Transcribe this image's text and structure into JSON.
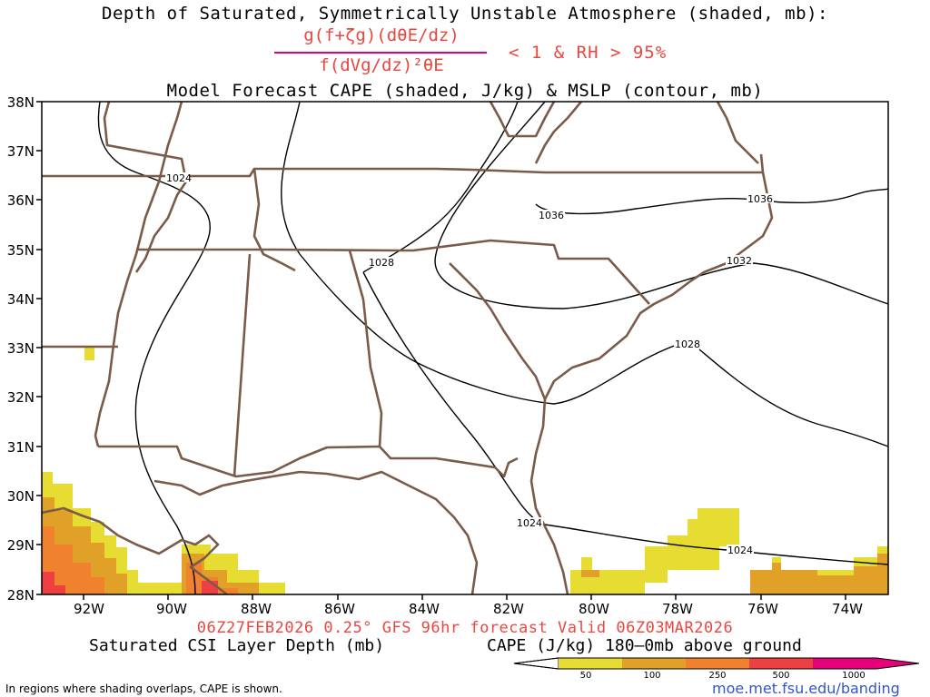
{
  "title": {
    "line1": "Depth of Saturated, Symmetrically Unstable Atmosphere (shaded, mb):",
    "formula_numerator": "g(f+ζg)(dθE/dz)",
    "formula_denominator": "f(dVg/dz)²θE",
    "condition": "< 1 & RH > 95%",
    "line3": "Model Forecast CAPE (shaded, J/kg) & MSLP (contour, mb)"
  },
  "axes": {
    "lat_labels": [
      "38N",
      "37N",
      "36N",
      "35N",
      "34N",
      "33N",
      "32N",
      "31N",
      "30N",
      "29N",
      "28N"
    ],
    "lon_labels": [
      "92W",
      "90W",
      "88W",
      "86W",
      "84W",
      "82W",
      "80W",
      "78W",
      "76W",
      "74W"
    ]
  },
  "contours": {
    "labels": [
      "1024",
      "1028",
      "1032",
      "1036"
    ]
  },
  "footer": {
    "valid": "06Z27FEB2026 0.25° GFS 96hr forecast Valid 06Z03MAR2026",
    "left_label": "Saturated CSI Layer Depth (mb)",
    "right_label": "CAPE (J/kg) 180–0mb above ground",
    "note": "In regions where shading overlaps, CAPE is shown.",
    "credit": "moe.met.fsu.edu/banding"
  },
  "colorbar": {
    "ticks": [
      "50",
      "100",
      "250",
      "500",
      "1000"
    ],
    "colors": [
      "#ffffff",
      "#e6dc32",
      "#e1a028",
      "#f0822d",
      "#ee4040",
      "#e6007a"
    ]
  },
  "colors": {
    "state_borders": "#7a5a48",
    "contours": "#000000",
    "title_red": "#e8473f"
  }
}
